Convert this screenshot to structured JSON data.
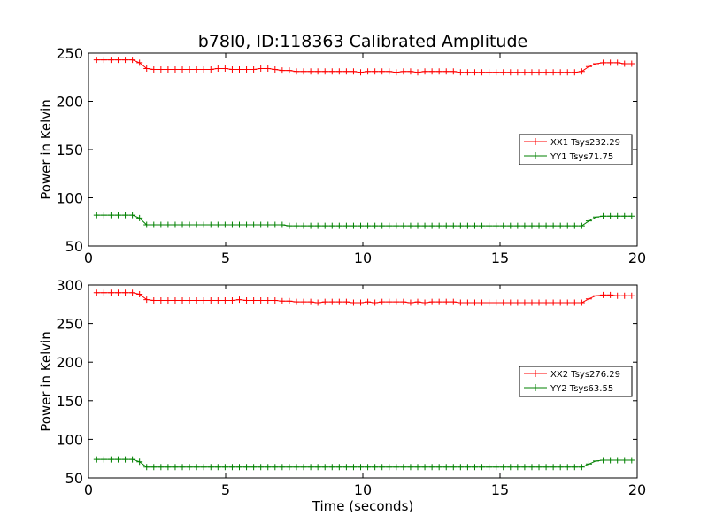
{
  "chart_data": [
    {
      "type": "line",
      "title": "b78l0, ID:118363 Calibrated Amplitude",
      "xlabel": "",
      "ylabel": "Power in Kelvin",
      "xlim": [
        0,
        20
      ],
      "ylim": [
        50,
        250
      ],
      "xticks": [
        "0",
        "5",
        "10",
        "15",
        "20"
      ],
      "yticks": [
        "50",
        "100",
        "150",
        "200",
        "250"
      ],
      "legend_position": "center-right",
      "series": [
        {
          "name": "XX1 Tsys232.29",
          "color": "#ff0000",
          "x": [
            0.3,
            0.56,
            0.82,
            1.08,
            1.34,
            1.6,
            1.86,
            2.12,
            2.38,
            2.64,
            2.9,
            3.16,
            3.42,
            3.68,
            3.94,
            4.2,
            4.46,
            4.72,
            4.98,
            5.24,
            5.5,
            5.76,
            6.02,
            6.28,
            6.54,
            6.8,
            7.06,
            7.32,
            7.58,
            7.84,
            8.1,
            8.36,
            8.62,
            8.88,
            9.14,
            9.4,
            9.66,
            9.92,
            10.18,
            10.44,
            10.7,
            10.96,
            11.22,
            11.48,
            11.74,
            12.0,
            12.26,
            12.52,
            12.78,
            13.04,
            13.3,
            13.56,
            13.82,
            14.08,
            14.34,
            14.6,
            14.86,
            15.12,
            15.38,
            15.64,
            15.9,
            16.16,
            16.42,
            16.68,
            16.94,
            17.2,
            17.46,
            17.72,
            17.98,
            18.24,
            18.5,
            18.76,
            19.02,
            19.28,
            19.54,
            19.8
          ],
          "values": [
            243,
            243,
            243,
            243,
            243,
            243,
            240,
            234,
            233,
            233,
            233,
            233,
            233,
            233,
            233,
            233,
            233,
            234,
            234,
            233,
            233,
            233,
            233,
            234,
            234,
            233,
            232,
            232,
            231,
            231,
            231,
            231,
            231,
            231,
            231,
            231,
            231,
            230,
            231,
            231,
            231,
            231,
            230,
            231,
            231,
            230,
            231,
            231,
            231,
            231,
            231,
            230,
            230,
            230,
            230,
            230,
            230,
            230,
            230,
            230,
            230,
            230,
            230,
            230,
            230,
            230,
            230,
            230,
            231,
            236,
            239,
            240,
            240,
            240,
            239,
            239
          ]
        },
        {
          "name": "YY1 Tsys71.75",
          "color": "#008000",
          "x": [
            0.3,
            0.56,
            0.82,
            1.08,
            1.34,
            1.6,
            1.86,
            2.12,
            2.38,
            2.64,
            2.9,
            3.16,
            3.42,
            3.68,
            3.94,
            4.2,
            4.46,
            4.72,
            4.98,
            5.24,
            5.5,
            5.76,
            6.02,
            6.28,
            6.54,
            6.8,
            7.06,
            7.32,
            7.58,
            7.84,
            8.1,
            8.36,
            8.62,
            8.88,
            9.14,
            9.4,
            9.66,
            9.92,
            10.18,
            10.44,
            10.7,
            10.96,
            11.22,
            11.48,
            11.74,
            12.0,
            12.26,
            12.52,
            12.78,
            13.04,
            13.3,
            13.56,
            13.82,
            14.08,
            14.34,
            14.6,
            14.86,
            15.12,
            15.38,
            15.64,
            15.9,
            16.16,
            16.42,
            16.68,
            16.94,
            17.2,
            17.46,
            17.72,
            17.98,
            18.24,
            18.5,
            18.76,
            19.02,
            19.28,
            19.54,
            19.8
          ],
          "values": [
            82,
            82,
            82,
            82,
            82,
            82,
            79,
            72,
            72,
            72,
            72,
            72,
            72,
            72,
            72,
            72,
            72,
            72,
            72,
            72,
            72,
            72,
            72,
            72,
            72,
            72,
            72,
            71,
            71,
            71,
            71,
            71,
            71,
            71,
            71,
            71,
            71,
            71,
            71,
            71,
            71,
            71,
            71,
            71,
            71,
            71,
            71,
            71,
            71,
            71,
            71,
            71,
            71,
            71,
            71,
            71,
            71,
            71,
            71,
            71,
            71,
            71,
            71,
            71,
            71,
            71,
            71,
            71,
            71,
            76,
            80,
            81,
            81,
            81,
            81,
            81
          ]
        }
      ]
    },
    {
      "type": "line",
      "title": "",
      "xlabel": "Time (seconds)",
      "ylabel": "Power in Kelvin",
      "xlim": [
        0,
        20
      ],
      "ylim": [
        50,
        300
      ],
      "xticks": [
        "0",
        "5",
        "10",
        "15",
        "20"
      ],
      "yticks": [
        "50",
        "100",
        "150",
        "200",
        "250",
        "300"
      ],
      "legend_position": "center-right",
      "series": [
        {
          "name": "XX2 Tsys276.29",
          "color": "#ff0000",
          "x": [
            0.3,
            0.56,
            0.82,
            1.08,
            1.34,
            1.6,
            1.86,
            2.12,
            2.38,
            2.64,
            2.9,
            3.16,
            3.42,
            3.68,
            3.94,
            4.2,
            4.46,
            4.72,
            4.98,
            5.24,
            5.5,
            5.76,
            6.02,
            6.28,
            6.54,
            6.8,
            7.06,
            7.32,
            7.58,
            7.84,
            8.1,
            8.36,
            8.62,
            8.88,
            9.14,
            9.4,
            9.66,
            9.92,
            10.18,
            10.44,
            10.7,
            10.96,
            11.22,
            11.48,
            11.74,
            12.0,
            12.26,
            12.52,
            12.78,
            13.04,
            13.3,
            13.56,
            13.82,
            14.08,
            14.34,
            14.6,
            14.86,
            15.12,
            15.38,
            15.64,
            15.9,
            16.16,
            16.42,
            16.68,
            16.94,
            17.2,
            17.46,
            17.72,
            17.98,
            18.24,
            18.5,
            18.76,
            19.02,
            19.28,
            19.54,
            19.8
          ],
          "values": [
            290,
            290,
            290,
            290,
            290,
            290,
            288,
            281,
            280,
            280,
            280,
            280,
            280,
            280,
            280,
            280,
            280,
            280,
            280,
            280,
            281,
            280,
            280,
            280,
            280,
            280,
            279,
            279,
            278,
            278,
            278,
            277,
            278,
            278,
            278,
            278,
            277,
            277,
            278,
            277,
            278,
            278,
            278,
            278,
            277,
            278,
            277,
            278,
            278,
            278,
            278,
            277,
            277,
            277,
            277,
            277,
            277,
            277,
            277,
            277,
            277,
            277,
            277,
            277,
            277,
            277,
            277,
            277,
            277,
            282,
            286,
            287,
            287,
            286,
            286,
            286
          ]
        },
        {
          "name": "YY2 Tsys63.55",
          "color": "#008000",
          "x": [
            0.3,
            0.56,
            0.82,
            1.08,
            1.34,
            1.6,
            1.86,
            2.12,
            2.38,
            2.64,
            2.9,
            3.16,
            3.42,
            3.68,
            3.94,
            4.2,
            4.46,
            4.72,
            4.98,
            5.24,
            5.5,
            5.76,
            6.02,
            6.28,
            6.54,
            6.8,
            7.06,
            7.32,
            7.58,
            7.84,
            8.1,
            8.36,
            8.62,
            8.88,
            9.14,
            9.4,
            9.66,
            9.92,
            10.18,
            10.44,
            10.7,
            10.96,
            11.22,
            11.48,
            11.74,
            12.0,
            12.26,
            12.52,
            12.78,
            13.04,
            13.3,
            13.56,
            13.82,
            14.08,
            14.34,
            14.6,
            14.86,
            15.12,
            15.38,
            15.64,
            15.9,
            16.16,
            16.42,
            16.68,
            16.94,
            17.2,
            17.46,
            17.72,
            17.98,
            18.24,
            18.5,
            18.76,
            19.02,
            19.28,
            19.54,
            19.8
          ],
          "values": [
            74,
            74,
            74,
            74,
            74,
            74,
            71,
            64,
            64,
            64,
            64,
            64,
            64,
            64,
            64,
            64,
            64,
            64,
            64,
            64,
            64,
            64,
            64,
            64,
            64,
            64,
            64,
            64,
            64,
            64,
            64,
            64,
            64,
            64,
            64,
            64,
            64,
            64,
            64,
            64,
            64,
            64,
            64,
            64,
            64,
            64,
            64,
            64,
            64,
            64,
            64,
            64,
            64,
            64,
            64,
            64,
            64,
            64,
            64,
            64,
            64,
            64,
            64,
            64,
            64,
            64,
            64,
            64,
            64,
            68,
            72,
            73,
            73,
            73,
            73,
            73
          ]
        }
      ]
    }
  ]
}
